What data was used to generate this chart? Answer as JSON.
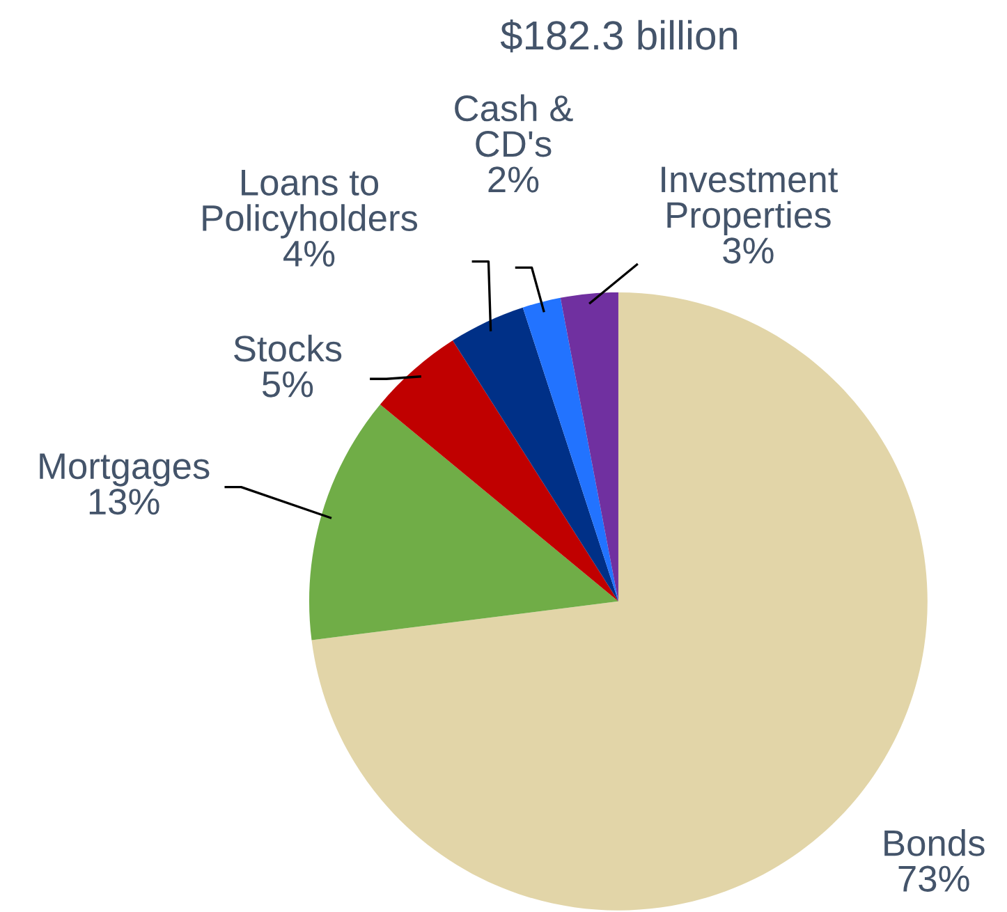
{
  "chart_data": {
    "type": "pie",
    "title": "$182.3 billion",
    "categories": [
      "Bonds",
      "Mortgages",
      "Stocks",
      "Loans to\nPolicyholders",
      "Cash &\nCD's",
      "Investment\nProperties"
    ],
    "values": [
      73,
      13,
      5,
      4,
      2,
      3
    ],
    "value_labels": [
      "73%",
      "13%",
      "5%",
      "4%",
      "2%",
      "3%"
    ],
    "colors": [
      "#e2d5a8",
      "#70ad47",
      "#c00000",
      "#003087",
      "#2273ff",
      "#7030a0"
    ],
    "legend": false
  }
}
